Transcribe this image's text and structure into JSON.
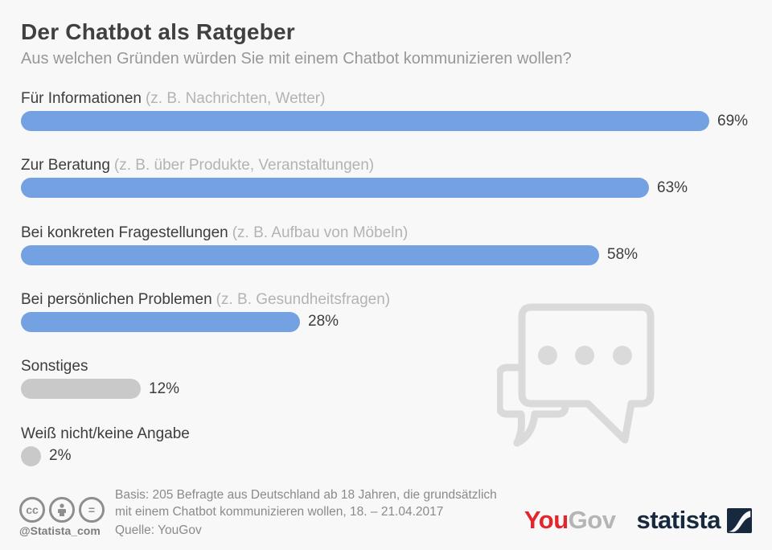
{
  "header": {
    "title": "Der Chatbot als Ratgeber",
    "subtitle": "Aus welchen Gründen würden Sie mit einem Chatbot kommunizieren wollen?"
  },
  "chart_data": {
    "type": "bar",
    "orientation": "horizontal",
    "title": "Der Chatbot als Ratgeber",
    "subtitle": "Aus welchen Gründen würden Sie mit einem Chatbot kommunizieren wollen?",
    "unit": "%",
    "xlim": [
      0,
      69
    ],
    "grid": false,
    "legend": "none",
    "categories": [
      "Für Informationen",
      "Zur Beratung",
      "Bei konkreten Fragestellungen",
      "Bei persönlichen Problemen",
      "Sonstiges",
      "Weiß nicht/keine Angabe"
    ],
    "category_notes": [
      "(z. B. Nachrichten, Wetter)",
      "(z. B. über Produkte, Veranstaltungen)",
      "(z. B. Aufbau von Möbeln)",
      "(z. B. Gesundheitsfragen)",
      "",
      ""
    ],
    "values": [
      69,
      63,
      58,
      28,
      12,
      2
    ],
    "value_labels": [
      "69%",
      "63%",
      "58%",
      "28%",
      "12%",
      "2%"
    ],
    "bar_colors": [
      "#74a1e2",
      "#74a1e2",
      "#74a1e2",
      "#74a1e2",
      "#c9c9c9",
      "#c9c9c9"
    ],
    "colors": {
      "primary_blue": "#74a1e2",
      "neutral_gray": "#c9c9c9"
    }
  },
  "watermark": {
    "name": "chat-bubbles-icon",
    "color": "#dadada"
  },
  "footer": {
    "license": {
      "icons": [
        "cc-icon",
        "attribution-person-icon",
        "equals-icon"
      ],
      "handle": "@Statista_com"
    },
    "basis_line1": "Basis: 205 Befragte aus Deutschland ab 18 Jahren, die grundsätzlich",
    "basis_line2": "mit einem Chatbot kommunizieren wollen, 18. – 21.04.2017",
    "source": "Quelle: YouGov",
    "logos": {
      "yougov": {
        "part1": "You",
        "part2": "Gov",
        "color1": "#e3262d",
        "color2": "#b5b5b5"
      },
      "statista": {
        "text": "statista",
        "color": "#16293e"
      }
    }
  }
}
